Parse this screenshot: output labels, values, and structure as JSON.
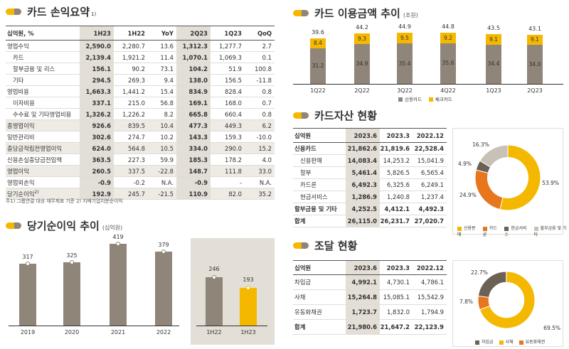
{
  "colors": {
    "accent": "#f5b800",
    "grey": "#8f8579",
    "orange": "#e8761c",
    "dark": "#6b6155",
    "light": "#c9c1b6",
    "panel": "#e3ded6"
  },
  "s1": {
    "title": "카드 손익요약",
    "sup": "1)",
    "headers": [
      "십억원, %",
      "1H23",
      "1H22",
      "YoY",
      "2Q23",
      "1Q23",
      "QoQ"
    ],
    "rows": [
      {
        "label": "영업수익",
        "v": [
          "2,590.0",
          "2,280.7",
          "13.6",
          "1,312.3",
          "1,277.7",
          "2.7"
        ],
        "indent": false
      },
      {
        "label": "카드",
        "v": [
          "2,139.4",
          "1,921.2",
          "11.4",
          "1,070.1",
          "1,069.3",
          "0.1"
        ],
        "indent": true
      },
      {
        "label": "할부금융 및 리스",
        "v": [
          "156.1",
          "90.2",
          "73.1",
          "104.2",
          "51.9",
          "100.8"
        ],
        "indent": true
      },
      {
        "label": "기타",
        "v": [
          "294.5",
          "269.3",
          "9.4",
          "138.0",
          "156.5",
          "-11.8"
        ],
        "indent": true
      },
      {
        "label": "영업비용",
        "v": [
          "1,663.3",
          "1,441.2",
          "15.4",
          "834.9",
          "828.4",
          "0.8"
        ],
        "indent": false
      },
      {
        "label": "이자비용",
        "v": [
          "337.1",
          "215.0",
          "56.8",
          "169.1",
          "168.0",
          "0.7"
        ],
        "indent": true
      },
      {
        "label": "수수료 및 기타영업비용",
        "v": [
          "1,326.2",
          "1,226.2",
          "8.2",
          "665.8",
          "660.4",
          "0.8"
        ],
        "indent": true
      },
      {
        "label": "총영업이익",
        "v": [
          "926.6",
          "839.5",
          "10.4",
          "477.3",
          "449.3",
          "6.2"
        ],
        "indent": false
      },
      {
        "label": "일반관리비",
        "v": [
          "302.6",
          "274.7",
          "10.2",
          "143.3",
          "159.3",
          "-10.0"
        ],
        "indent": false
      },
      {
        "label": "충당금적립전영업이익",
        "v": [
          "624.0",
          "564.8",
          "10.5",
          "334.0",
          "290.0",
          "15.2"
        ],
        "indent": false
      },
      {
        "label": "신용손실충당금전입액",
        "v": [
          "363.5",
          "227.3",
          "59.9",
          "185.3",
          "178.2",
          "4.0"
        ],
        "indent": false
      },
      {
        "label": "영업이익",
        "v": [
          "260.5",
          "337.5",
          "-22.8",
          "148.7",
          "111.8",
          "33.0"
        ],
        "indent": false
      },
      {
        "label": "영업외손익",
        "v": [
          "-0.9",
          "-0.2",
          "N.A.",
          "-0.9",
          "-",
          "N.A."
        ],
        "indent": false
      },
      {
        "label": "당기순이익",
        "sup": "2)",
        "v": [
          "192.9",
          "245.7",
          "-21.5",
          "110.9",
          "82.0",
          "35.2"
        ],
        "indent": false
      }
    ],
    "footnote": "주1) 그룹연결 대상 재무제표 기준    2) 지배기업지분순이익"
  },
  "s2": {
    "title": "당기순이익 추이",
    "unit": "(십억원)",
    "chart_data": {
      "type": "bar",
      "annual": {
        "categories": [
          "2019",
          "2020",
          "2021",
          "2022"
        ],
        "values": [
          317,
          325,
          419,
          379
        ]
      },
      "half": {
        "categories": [
          "1H22",
          "1H23"
        ],
        "values": [
          246,
          193
        ]
      },
      "ylim": [
        0,
        450
      ]
    }
  },
  "s3": {
    "title": "카드 이용금액 추이",
    "unit": "(조원)",
    "chart_data": {
      "type": "bar",
      "categories": [
        "1Q22",
        "2Q22",
        "3Q22",
        "4Q22",
        "1Q23",
        "2Q23"
      ],
      "series": [
        {
          "name": "신용카드",
          "values": [
            31.2,
            34.9,
            35.4,
            35.6,
            34.4,
            34.0
          ]
        },
        {
          "name": "체크카드",
          "values": [
            8.4,
            9.3,
            9.5,
            9.2,
            9.1,
            9.1
          ]
        }
      ],
      "totals": [
        "39.6",
        "44.2",
        "44.9",
        "44.8",
        "43.5",
        "43.1"
      ],
      "ylim": [
        0,
        46
      ]
    }
  },
  "s4": {
    "title": "카드자산 현황",
    "headers": [
      "십억원",
      "2023.6",
      "2023.3",
      "2022.12"
    ],
    "rows": [
      {
        "label": "신용카드",
        "v": [
          "21,862.6",
          "21,819.6",
          "22,528.4"
        ],
        "indent": false
      },
      {
        "label": "신용판매",
        "v": [
          "14,083.4",
          "14,253.2",
          "15,041.9"
        ],
        "indent": true
      },
      {
        "label": "할부",
        "v": [
          "5,461.4",
          "5,826.5",
          "6,565.4"
        ],
        "indent": true
      },
      {
        "label": "카드론",
        "v": [
          "6,492.3",
          "6,325.6",
          "6,249.1"
        ],
        "indent": true
      },
      {
        "label": "현금서비스",
        "v": [
          "1,286.9",
          "1,240.8",
          "1,237.4"
        ],
        "indent": true
      },
      {
        "label": "할부금융 및 기타",
        "v": [
          "4,252.5",
          "4,412.1",
          "4,492.3"
        ],
        "indent": false
      },
      {
        "label": "합계",
        "v": [
          "26,115.0",
          "26,231.7",
          "27,020.7"
        ],
        "indent": false
      }
    ],
    "chart_data": {
      "type": "pie",
      "labels": [
        "신용판매",
        "카드론",
        "현금서비스",
        "할부금융 및 기타"
      ],
      "values": [
        53.9,
        24.9,
        4.9,
        16.3
      ],
      "value_labels": [
        "53.9%",
        "24.9%",
        "4.9%",
        "16.3%"
      ]
    }
  },
  "s5": {
    "title": "조달 현황",
    "headers": [
      "십억원",
      "2023.6",
      "2023.3",
      "2022.12"
    ],
    "rows": [
      {
        "label": "차입금",
        "v": [
          "4,992.1",
          "4,730.1",
          "4,786.1"
        ]
      },
      {
        "label": "사채",
        "v": [
          "15,264.8",
          "15,085.1",
          "15,542.9"
        ]
      },
      {
        "label": "유동화채권",
        "v": [
          "1,723.7",
          "1,832.0",
          "1,794.9"
        ]
      },
      {
        "label": "합계",
        "v": [
          "21,980.6",
          "21,647.2",
          "22,123.9"
        ]
      }
    ],
    "chart_data": {
      "type": "pie",
      "labels": [
        "차입금",
        "사채",
        "유동화채권"
      ],
      "values": [
        22.7,
        69.5,
        7.8
      ],
      "value_labels": [
        "22.7%",
        "69.5%",
        "7.8%"
      ]
    }
  }
}
